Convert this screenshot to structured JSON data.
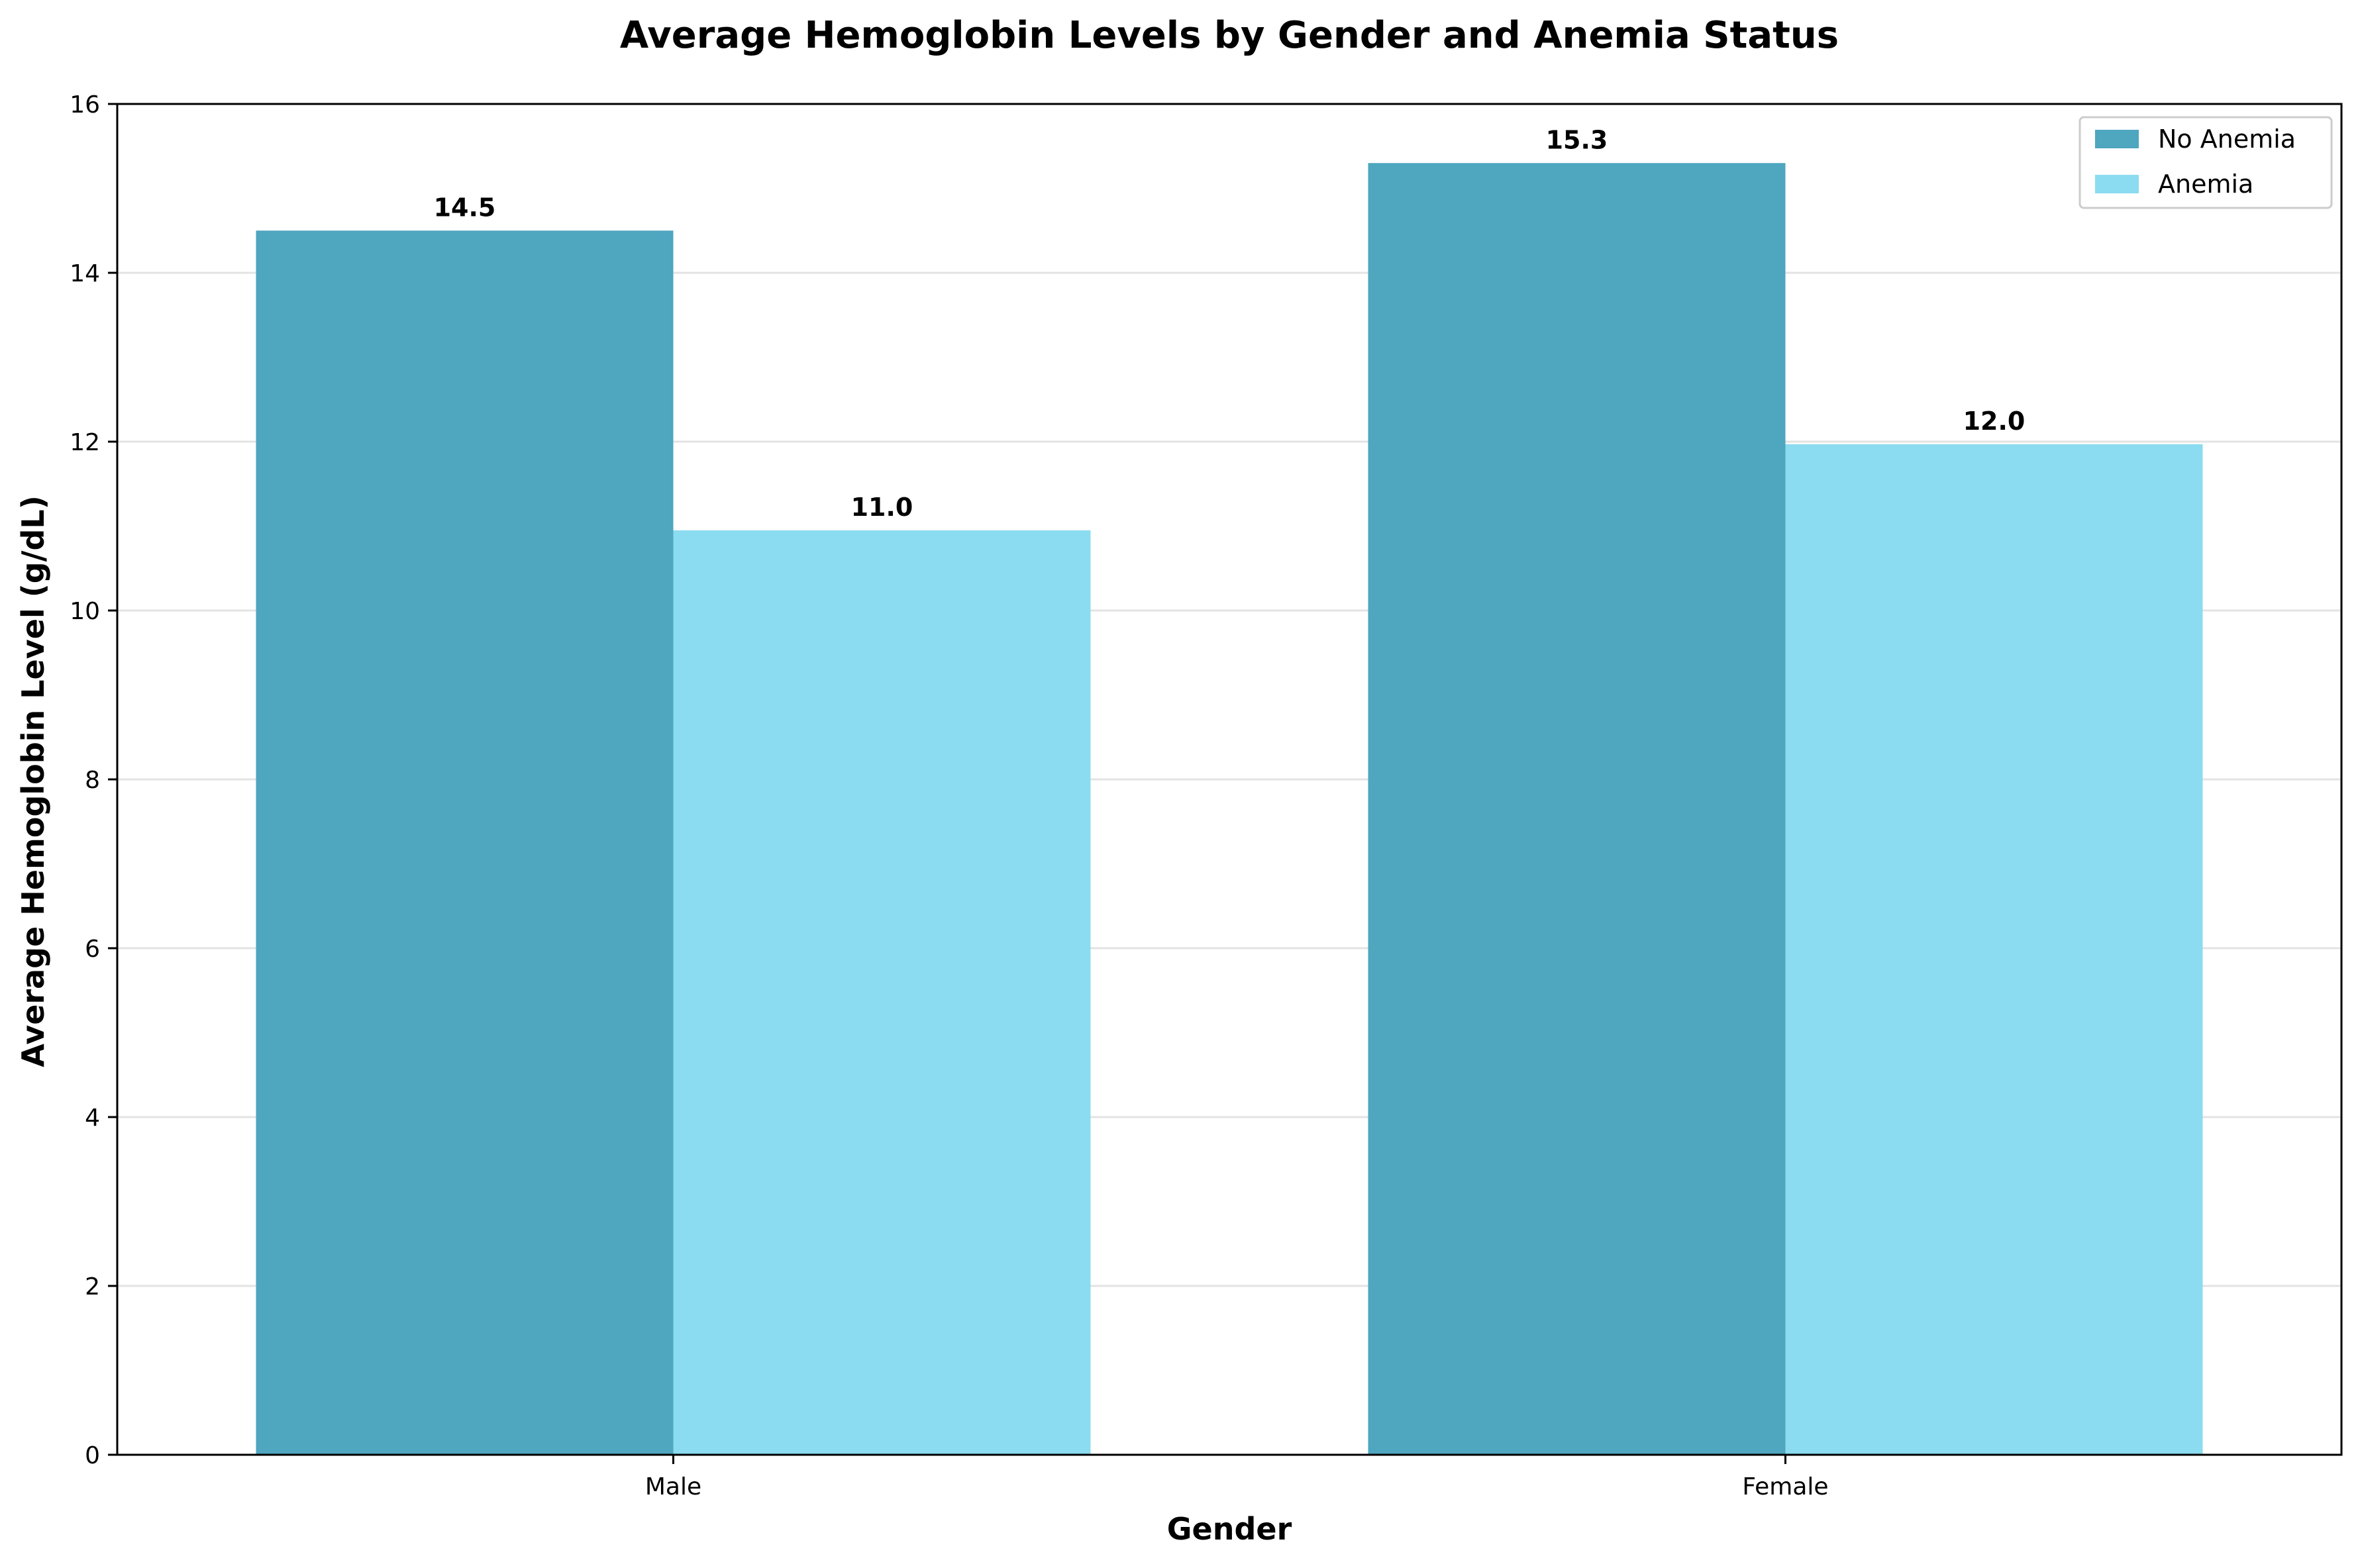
{
  "chart_data": {
    "type": "bar",
    "title": "Average Hemoglobin Levels by Gender and Anemia Status",
    "xlabel": "Gender",
    "ylabel": "Average Hemoglobin Level (g/dL)",
    "categories": [
      "Male",
      "Female"
    ],
    "series": [
      {
        "name": "No Anemia",
        "values": [
          14.5,
          15.3
        ],
        "labels": [
          "14.5",
          "15.3"
        ],
        "color": "#4ea6bf"
      },
      {
        "name": "Anemia",
        "values": [
          10.95,
          11.97
        ],
        "labels": [
          "11.0",
          "12.0"
        ],
        "color": "#8bdcf0"
      }
    ],
    "ylim": [
      0,
      16
    ],
    "yticks": [
      0,
      2,
      4,
      6,
      8,
      10,
      12,
      14,
      16
    ],
    "ytick_labels": [
      "0",
      "2",
      "4",
      "6",
      "8",
      "10",
      "12",
      "14",
      "16"
    ],
    "grid": "y",
    "legend_position": "top-right"
  }
}
